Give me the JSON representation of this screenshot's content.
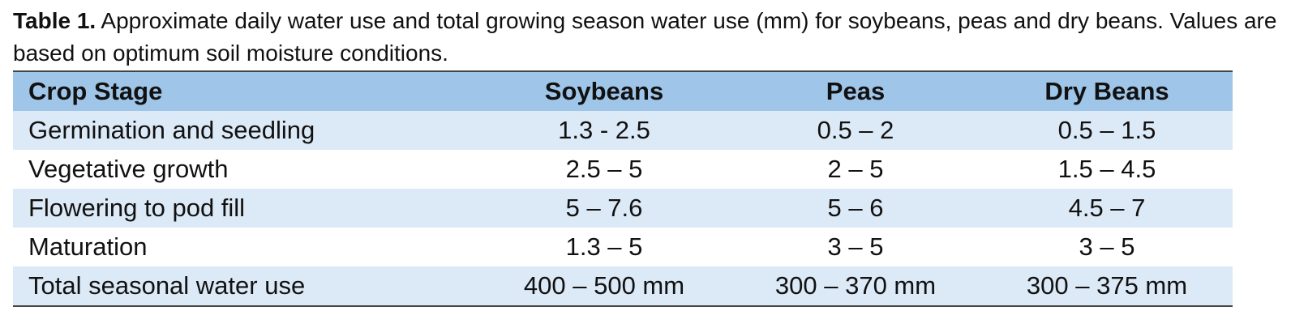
{
  "caption": {
    "label": "Table 1.",
    "text": "Approximate daily water use and total growing season water use (mm) for soybeans, peas and dry beans. Values are based on optimum soil moisture conditions."
  },
  "table": {
    "header": [
      "Crop Stage",
      "Soybeans",
      "Peas",
      "Dry Beans"
    ],
    "rows": [
      [
        "Germination and seedling",
        "1.3 - 2.5",
        "0.5 – 2",
        "0.5 – 1.5"
      ],
      [
        "Vegetative growth",
        "2.5 – 5",
        "2 – 5",
        "1.5 – 4.5"
      ],
      [
        "Flowering to pod fill",
        "5 – 7.6",
        "5 – 6",
        "4.5 – 7"
      ],
      [
        "Maturation",
        "1.3 – 5",
        "3 – 5",
        "3 – 5"
      ],
      [
        "Total seasonal water use",
        "400 – 500 mm",
        "300 – 370 mm",
        "300 – 375 mm"
      ]
    ]
  }
}
